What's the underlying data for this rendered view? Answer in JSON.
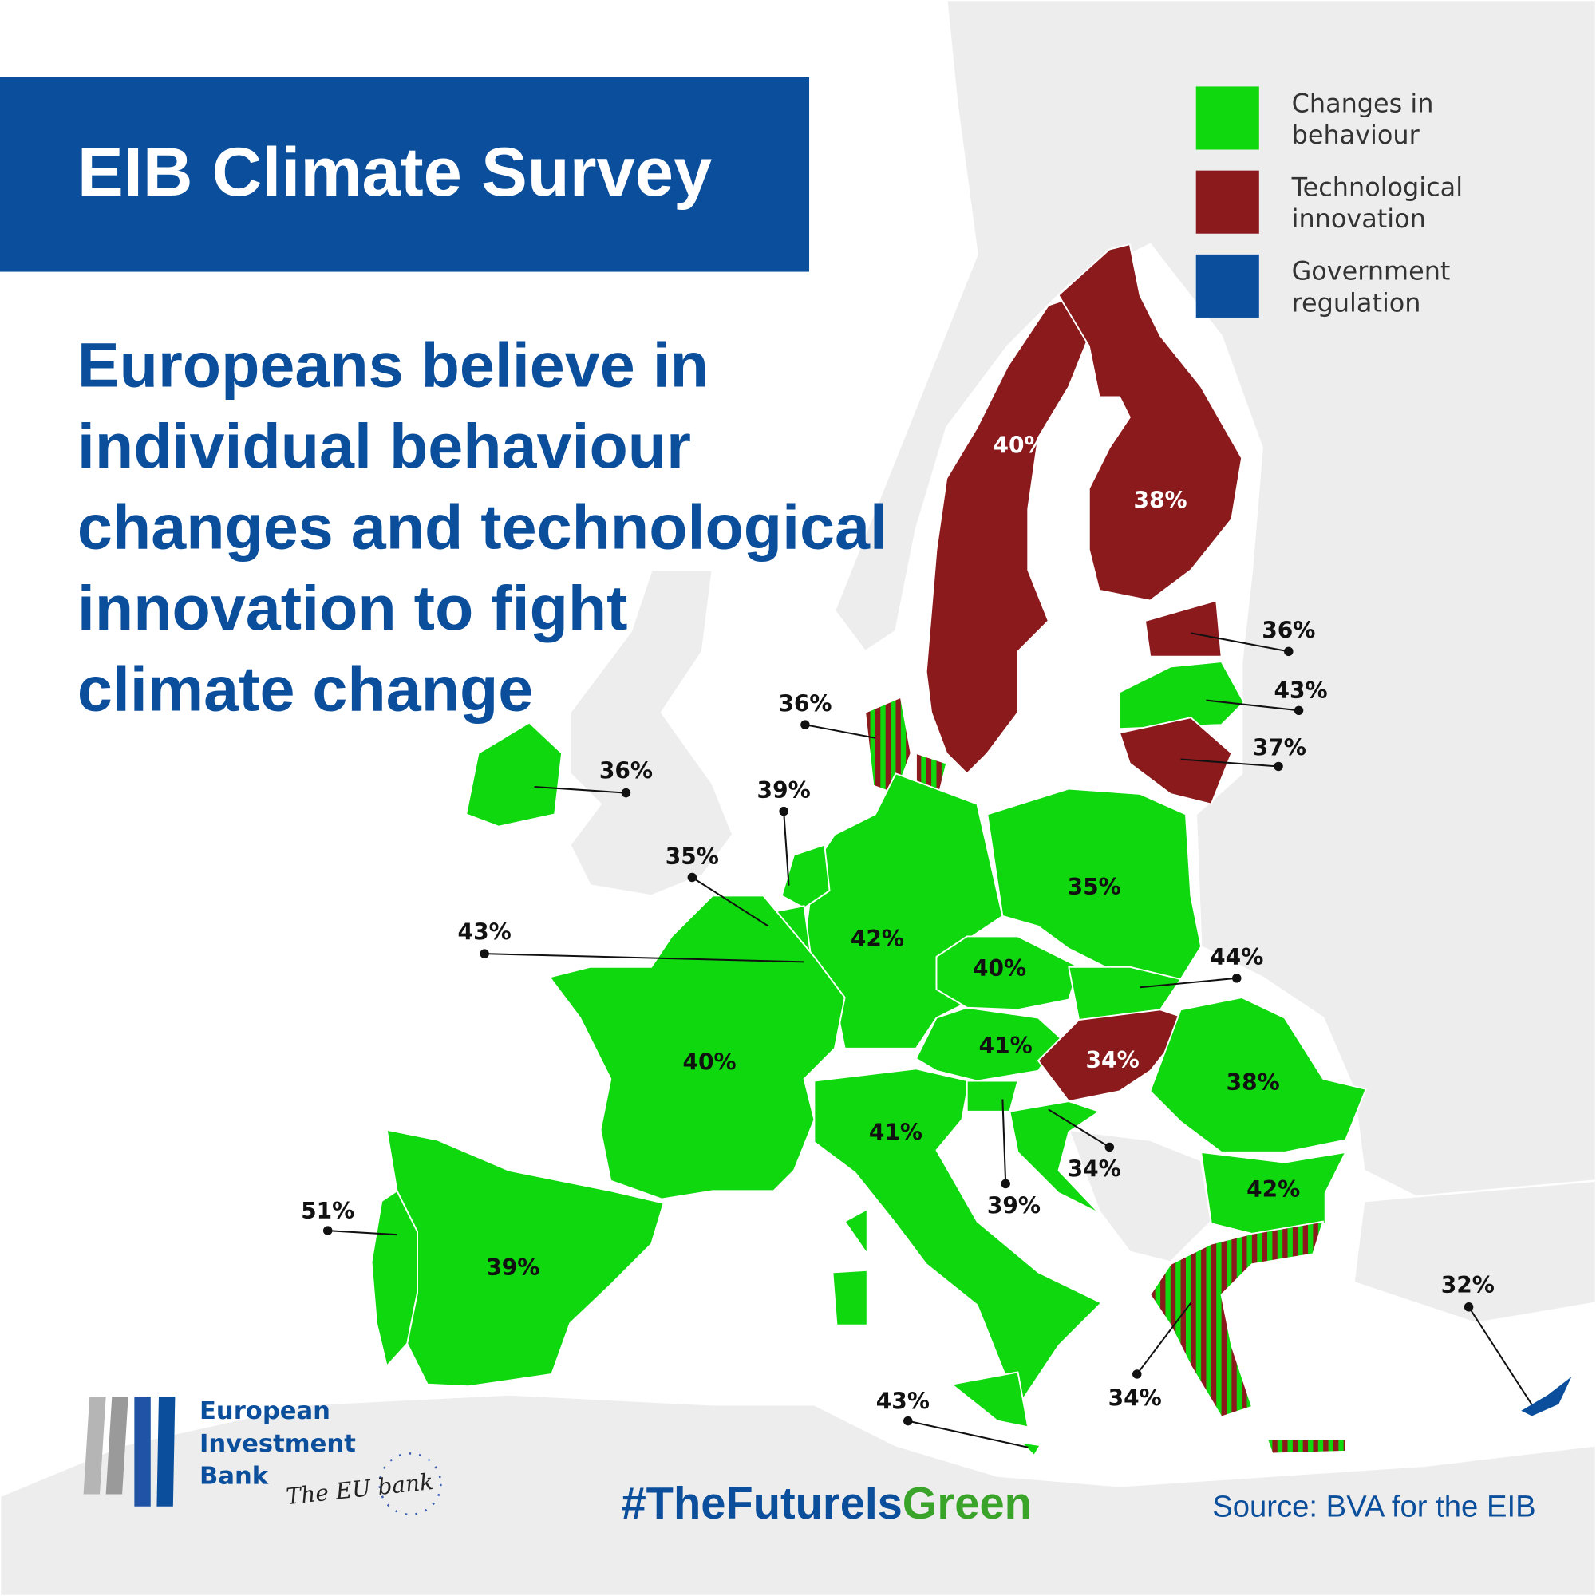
{
  "header": {
    "title": "EIB Climate Survey",
    "subtitle": [
      "Europeans believe in",
      "individual behaviour",
      "changes and technological",
      "innovation to fight",
      "climate change"
    ]
  },
  "legend": [
    {
      "lines": [
        "Changes in",
        "behaviour"
      ],
      "color": "#0fd80f"
    },
    {
      "lines": [
        "Technological",
        "innovation"
      ],
      "color": "#8b1a1c"
    },
    {
      "lines": [
        "Government",
        "regulation"
      ],
      "color": "#0b4f9c"
    }
  ],
  "map_labels": [
    "40%",
    "38%",
    "36%",
    "43%",
    "37%",
    "36%",
    "36%",
    "39%",
    "35%",
    "43%",
    "42%",
    "35%",
    "40%",
    "44%",
    "41%",
    "34%",
    "38%",
    "40%",
    "41%",
    "34%",
    "39%",
    "42%",
    "51%",
    "39%",
    "34%",
    "43%",
    "32%"
  ],
  "footer": {
    "logo": [
      "European",
      "Investment",
      "Bank"
    ],
    "slogan": "The EU bank",
    "hashtag": [
      "#TheFutureIs",
      "Green"
    ],
    "source": "Source: BVA for the EIB"
  }
}
